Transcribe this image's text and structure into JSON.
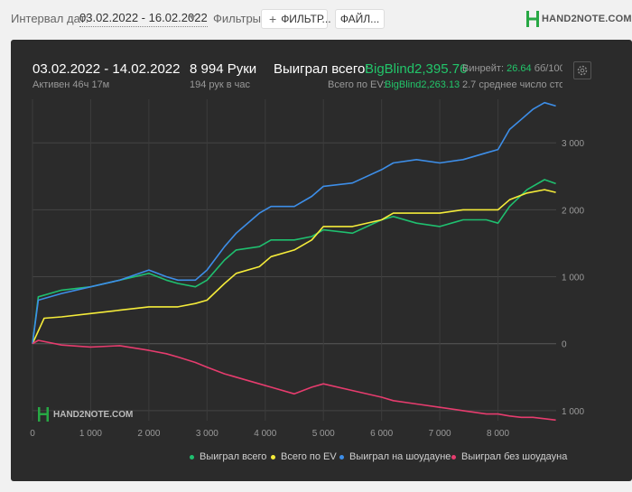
{
  "toolbar": {
    "interval_label": "Интервал дат:",
    "date_range": "03.02.2022 - 16.02.2022",
    "filters_label": "Фильтры:",
    "filter_button": "ФИЛЬТР...",
    "file_button": "ФАЙЛ..."
  },
  "brand": {
    "logo_text": "HAND2NOTE.COM",
    "accent_color": "#27a844"
  },
  "summary": {
    "period": "03.02.2022 - 14.02.2022",
    "active_time": "Активен 46ч 17м",
    "hands_count": "8 994 Руки",
    "hands_per_hour": "194 рук в час",
    "won_total_label": "Выиграл всего:",
    "won_total_value": "BigBlind2,395.76",
    "ev_label": "Всего по EV:",
    "ev_value": "BigBlind2,263.13",
    "winrate_label": "Винрейт:",
    "winrate_value": "26.64",
    "winrate_unit": "бб/100",
    "avg_stack": "2.7 среднее число сто"
  },
  "watermark": "HAND2NOTE.COM",
  "chart_data": {
    "type": "line",
    "xlim": [
      0,
      9000
    ],
    "ylim": [
      -1150,
      3650
    ],
    "x_ticks": [
      0,
      1000,
      2000,
      3000,
      4000,
      5000,
      6000,
      7000,
      8000
    ],
    "x_tick_labels": [
      "0",
      "1 000",
      "2 000",
      "3 000",
      "4 000",
      "5 000",
      "6 000",
      "7 000",
      "8 000"
    ],
    "y_ticks": [
      3000,
      2000,
      1000,
      0,
      -1000
    ],
    "y_tick_labels": [
      "3 000",
      "2 000",
      "1 000",
      "0",
      "1 000"
    ],
    "grid": true,
    "legend_position": "bottom-right",
    "series": [
      {
        "name": "Выиграл всего",
        "color": "#1fbf6f",
        "x": [
          0,
          100,
          500,
          1000,
          1500,
          2000,
          2300,
          2500,
          2800,
          3000,
          3300,
          3500,
          3900,
          4100,
          4500,
          4800,
          5000,
          5500,
          6000,
          6200,
          6600,
          7000,
          7400,
          7800,
          8000,
          8200,
          8500,
          8800,
          8994
        ],
        "values": [
          0,
          700,
          800,
          850,
          950,
          1050,
          950,
          900,
          850,
          950,
          1250,
          1400,
          1450,
          1550,
          1550,
          1600,
          1700,
          1650,
          1850,
          1900,
          1800,
          1750,
          1850,
          1850,
          1800,
          2050,
          2300,
          2450,
          2390
        ]
      },
      {
        "name": "Всего по EV",
        "color": "#f5ec3a",
        "x": [
          0,
          200,
          500,
          1000,
          1500,
          2000,
          2300,
          2500,
          2800,
          3000,
          3300,
          3500,
          3900,
          4100,
          4500,
          4800,
          5000,
          5500,
          6000,
          6200,
          6600,
          7000,
          7400,
          7800,
          8000,
          8200,
          8500,
          8800,
          8994
        ],
        "values": [
          0,
          380,
          400,
          450,
          500,
          550,
          550,
          550,
          600,
          650,
          900,
          1050,
          1150,
          1300,
          1400,
          1550,
          1750,
          1750,
          1850,
          1950,
          1950,
          1950,
          2000,
          2000,
          2000,
          2150,
          2250,
          2300,
          2260
        ]
      },
      {
        "name": "Выиграл на шоудауне",
        "color": "#3d8ee8",
        "x": [
          0,
          100,
          500,
          1000,
          1500,
          2000,
          2300,
          2500,
          2800,
          3000,
          3300,
          3500,
          3900,
          4100,
          4500,
          4800,
          5000,
          5500,
          6000,
          6200,
          6600,
          7000,
          7400,
          7800,
          8000,
          8200,
          8400,
          8600,
          8800,
          8994
        ],
        "values": [
          0,
          650,
          750,
          850,
          950,
          1100,
          1000,
          950,
          950,
          1100,
          1450,
          1650,
          1950,
          2050,
          2050,
          2200,
          2350,
          2400,
          2600,
          2700,
          2750,
          2700,
          2750,
          2850,
          2900,
          3200,
          3350,
          3500,
          3600,
          3550
        ]
      },
      {
        "name": "Выиграл без шоудауна",
        "color": "#e63c6e",
        "x": [
          0,
          100,
          500,
          1000,
          1500,
          2000,
          2300,
          2500,
          2800,
          3000,
          3300,
          3500,
          3900,
          4100,
          4500,
          4800,
          5000,
          5500,
          6000,
          6200,
          6600,
          7000,
          7400,
          7800,
          8000,
          8200,
          8400,
          8600,
          8800,
          8994
        ],
        "values": [
          0,
          50,
          -20,
          -50,
          -30,
          -100,
          -150,
          -200,
          -280,
          -350,
          -450,
          -500,
          -600,
          -650,
          -750,
          -650,
          -600,
          -700,
          -800,
          -850,
          -900,
          -950,
          -1000,
          -1050,
          -1050,
          -1080,
          -1100,
          -1100,
          -1120,
          -1140
        ]
      }
    ]
  }
}
